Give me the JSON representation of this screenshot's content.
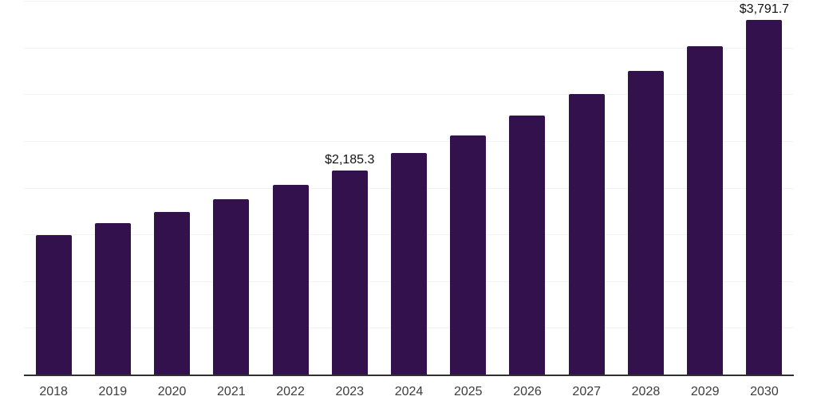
{
  "chart_data": {
    "type": "bar",
    "title": "",
    "xlabel": "",
    "ylabel": "",
    "categories": [
      "2018",
      "2019",
      "2020",
      "2021",
      "2022",
      "2023",
      "2024",
      "2025",
      "2026",
      "2027",
      "2028",
      "2029",
      "2030"
    ],
    "values": [
      1490,
      1620,
      1740,
      1880,
      2030,
      2185.3,
      2370,
      2555,
      2775,
      3000,
      3250,
      3510,
      3791.7
    ],
    "value_labels": [
      null,
      null,
      null,
      null,
      null,
      "$2,185.3",
      null,
      null,
      null,
      null,
      null,
      null,
      "$3,791.7"
    ],
    "ylim": [
      0,
      4000
    ],
    "gridline_step": 500,
    "grid": "horizontal",
    "legend_position": "none",
    "y_axis_tick_labels": "none",
    "bar_color": "#33114d"
  },
  "colors": {
    "bar": "#33114d",
    "axis_line": "#303030",
    "gridline": "#f2f2f2",
    "tick_label": "#3d3d3d",
    "data_label": "#111111",
    "background": "#ffffff"
  }
}
